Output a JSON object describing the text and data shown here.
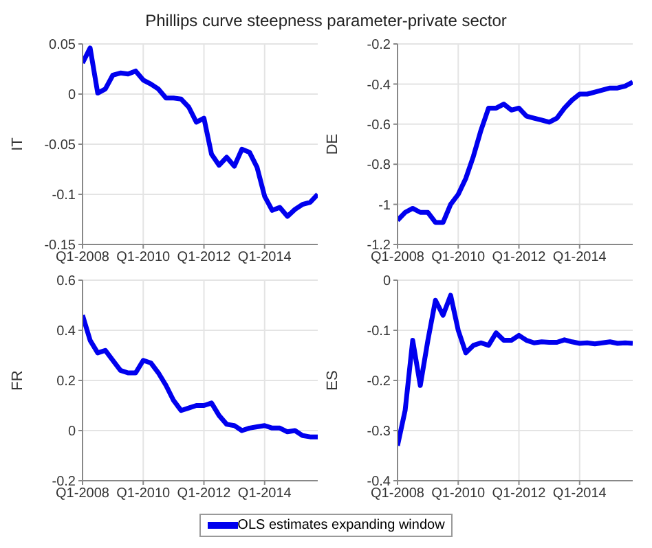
{
  "chart_data": [
    {
      "type": "line",
      "title": "Phillips curve steepness parameter-private sector",
      "ylabel": "IT",
      "grid": true,
      "line_style": "solid",
      "marker": "none",
      "x": [
        "2008-01",
        "2008-04",
        "2008-07",
        "2008-10",
        "2009-01",
        "2009-04",
        "2009-07",
        "2009-10",
        "2010-01",
        "2010-04",
        "2010-07",
        "2010-10",
        "2011-01",
        "2011-04",
        "2011-07",
        "2011-10",
        "2012-01",
        "2012-04",
        "2012-07",
        "2012-10",
        "2013-01",
        "2013-04",
        "2013-07",
        "2013-10",
        "2014-01",
        "2014-04",
        "2014-07",
        "2014-10",
        "2015-01",
        "2015-04",
        "2015-07",
        "2015-10"
      ],
      "xlim": [
        "2008-01",
        "2015-10"
      ],
      "xticks": [
        {
          "value": "2008-01",
          "label": "Q1-2008"
        },
        {
          "value": "2010-01",
          "label": "Q1-2010"
        },
        {
          "value": "2012-01",
          "label": "Q1-2012"
        },
        {
          "value": "2014-01",
          "label": "Q1-2014"
        }
      ],
      "ylim": [
        -0.15,
        0.05
      ],
      "yticks": [
        -0.15,
        -0.1,
        -0.05,
        0,
        0.05
      ],
      "series": [
        {
          "color": "#0000ee",
          "values": [
            0.031,
            0.046,
            0.001,
            0.005,
            0.019,
            0.021,
            0.02,
            0.023,
            0.014,
            0.01,
            0.005,
            -0.004,
            -0.004,
            -0.005,
            -0.013,
            -0.028,
            -0.024,
            -0.06,
            -0.071,
            -0.063,
            -0.072,
            -0.055,
            -0.058,
            -0.073,
            -0.102,
            -0.116,
            -0.113,
            -0.122,
            -0.115,
            -0.11,
            -0.108,
            -0.1
          ]
        }
      ]
    },
    {
      "type": "line",
      "ylabel": "DE",
      "grid": true,
      "line_style": "solid",
      "marker": "none",
      "x": [
        "2008-01",
        "2008-04",
        "2008-07",
        "2008-10",
        "2009-01",
        "2009-04",
        "2009-07",
        "2009-10",
        "2010-01",
        "2010-04",
        "2010-07",
        "2010-10",
        "2011-01",
        "2011-04",
        "2011-07",
        "2011-10",
        "2012-01",
        "2012-04",
        "2012-07",
        "2012-10",
        "2013-01",
        "2013-04",
        "2013-07",
        "2013-10",
        "2014-01",
        "2014-04",
        "2014-07",
        "2014-10",
        "2015-01",
        "2015-04",
        "2015-07",
        "2015-10"
      ],
      "xlim": [
        "2008-01",
        "2015-10"
      ],
      "xticks": [
        {
          "value": "2008-01",
          "label": "Q1-2008"
        },
        {
          "value": "2010-01",
          "label": "Q1-2010"
        },
        {
          "value": "2012-01",
          "label": "Q1-2012"
        },
        {
          "value": "2014-01",
          "label": "Q1-2014"
        }
      ],
      "ylim": [
        -1.2,
        -0.2
      ],
      "yticks": [
        -1.2,
        -1,
        -0.8,
        -0.6,
        -0.4,
        -0.2
      ],
      "series": [
        {
          "color": "#0000ee",
          "values": [
            -1.08,
            -1.04,
            -1.02,
            -1.04,
            -1.04,
            -1.09,
            -1.09,
            -1.0,
            -0.95,
            -0.87,
            -0.76,
            -0.63,
            -0.52,
            -0.52,
            -0.5,
            -0.53,
            -0.52,
            -0.56,
            -0.57,
            -0.58,
            -0.59,
            -0.57,
            -0.52,
            -0.48,
            -0.45,
            -0.45,
            -0.44,
            -0.43,
            -0.42,
            -0.42,
            -0.41,
            -0.39
          ]
        }
      ]
    },
    {
      "type": "line",
      "ylabel": "FR",
      "grid": true,
      "line_style": "solid",
      "marker": "none",
      "x": [
        "2008-01",
        "2008-04",
        "2008-07",
        "2008-10",
        "2009-01",
        "2009-04",
        "2009-07",
        "2009-10",
        "2010-01",
        "2010-04",
        "2010-07",
        "2010-10",
        "2011-01",
        "2011-04",
        "2011-07",
        "2011-10",
        "2012-01",
        "2012-04",
        "2012-07",
        "2012-10",
        "2013-01",
        "2013-04",
        "2013-07",
        "2013-10",
        "2014-01",
        "2014-04",
        "2014-07",
        "2014-10",
        "2015-01",
        "2015-04",
        "2015-07",
        "2015-10"
      ],
      "xlim": [
        "2008-01",
        "2015-10"
      ],
      "xticks": [
        {
          "value": "2008-01",
          "label": "Q1-2008"
        },
        {
          "value": "2010-01",
          "label": "Q1-2010"
        },
        {
          "value": "2012-01",
          "label": "Q1-2012"
        },
        {
          "value": "2014-01",
          "label": "Q1-2014"
        }
      ],
      "ylim": [
        -0.2,
        0.6
      ],
      "yticks": [
        -0.2,
        0,
        0.2,
        0.4,
        0.6
      ],
      "series": [
        {
          "color": "#0000ee",
          "values": [
            0.46,
            0.36,
            0.31,
            0.32,
            0.28,
            0.24,
            0.23,
            0.23,
            0.28,
            0.27,
            0.23,
            0.18,
            0.12,
            0.08,
            0.09,
            0.1,
            0.1,
            0.11,
            0.06,
            0.025,
            0.02,
            0.0,
            0.01,
            0.015,
            0.02,
            0.01,
            0.01,
            -0.005,
            0.0,
            -0.02,
            -0.025,
            -0.025
          ]
        }
      ]
    },
    {
      "type": "line",
      "ylabel": "ES",
      "grid": true,
      "line_style": "solid",
      "marker": "none",
      "legend": "bottom",
      "x": [
        "2008-01",
        "2008-04",
        "2008-07",
        "2008-10",
        "2009-01",
        "2009-04",
        "2009-07",
        "2009-10",
        "2010-01",
        "2010-04",
        "2010-07",
        "2010-10",
        "2011-01",
        "2011-04",
        "2011-07",
        "2011-10",
        "2012-01",
        "2012-04",
        "2012-07",
        "2012-10",
        "2013-01",
        "2013-04",
        "2013-07",
        "2013-10",
        "2014-01",
        "2014-04",
        "2014-07",
        "2014-10",
        "2015-01",
        "2015-04",
        "2015-07",
        "2015-10"
      ],
      "xlim": [
        "2008-01",
        "2015-10"
      ],
      "xticks": [
        {
          "value": "2008-01",
          "label": "Q1-2008"
        },
        {
          "value": "2010-01",
          "label": "Q1-2010"
        },
        {
          "value": "2012-01",
          "label": "Q1-2012"
        },
        {
          "value": "2014-01",
          "label": "Q1-2014"
        }
      ],
      "ylim": [
        -0.4,
        0
      ],
      "yticks": [
        -0.4,
        -0.3,
        -0.2,
        -0.1,
        0
      ],
      "series": [
        {
          "name": "OLS estimates expanding window",
          "color": "#0000ee",
          "values": [
            -0.33,
            -0.26,
            -0.12,
            -0.21,
            -0.12,
            -0.04,
            -0.07,
            -0.03,
            -0.1,
            -0.145,
            -0.13,
            -0.125,
            -0.13,
            -0.105,
            -0.12,
            -0.12,
            -0.11,
            -0.12,
            -0.125,
            -0.123,
            -0.124,
            -0.124,
            -0.119,
            -0.123,
            -0.126,
            -0.125,
            -0.127,
            -0.125,
            -0.123,
            -0.126,
            -0.125,
            -0.126
          ]
        }
      ]
    }
  ]
}
